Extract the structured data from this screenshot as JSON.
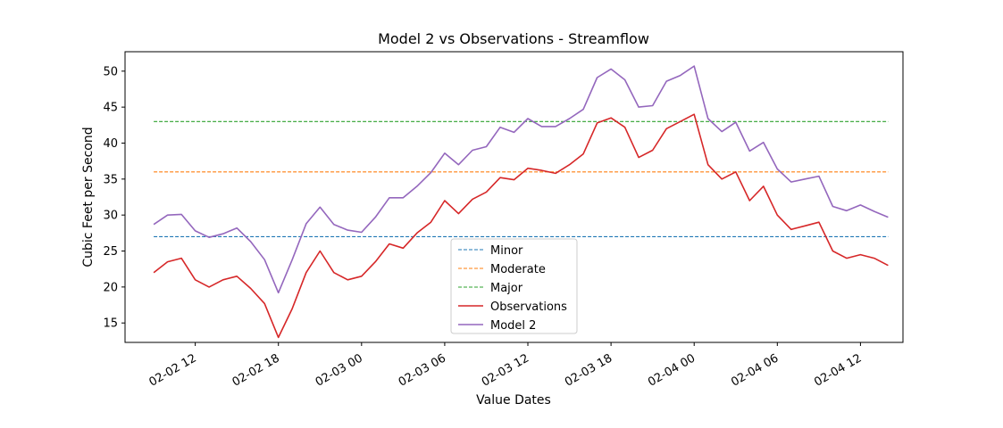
{
  "chart_data": {
    "type": "line",
    "title": "Model 2 vs Observations - Streamflow",
    "xlabel": "Value Dates",
    "ylabel": "Cubic Feet per Second",
    "x_tick_labels": [
      "02-02 12",
      "02-02 18",
      "02-03 00",
      "02-03 06",
      "02-03 12",
      "02-03 18",
      "02-04 00",
      "02-04 06",
      "02-04 12"
    ],
    "x_tick_times": [
      "2024-02-02T12:00",
      "2024-02-02T18:00",
      "2024-02-03T00:00",
      "2024-02-03T06:00",
      "2024-02-03T12:00",
      "2024-02-03T18:00",
      "2024-02-04T00:00",
      "2024-02-04T06:00",
      "2024-02-04T12:00"
    ],
    "xlim": [
      "2024-02-02T06:56",
      "2024-02-04T15:04"
    ],
    "ylim": [
      12.3,
      52.7
    ],
    "y_ticks": [
      15,
      20,
      25,
      30,
      35,
      40,
      45,
      50
    ],
    "grid": false,
    "legend_position": "lower-center",
    "x": [
      "2024-02-02T09:00",
      "2024-02-02T10:00",
      "2024-02-02T11:00",
      "2024-02-02T12:00",
      "2024-02-02T13:00",
      "2024-02-02T14:00",
      "2024-02-02T15:00",
      "2024-02-02T16:00",
      "2024-02-02T17:00",
      "2024-02-02T18:00",
      "2024-02-02T19:00",
      "2024-02-02T20:00",
      "2024-02-02T21:00",
      "2024-02-02T22:00",
      "2024-02-02T23:00",
      "2024-02-03T00:00",
      "2024-02-03T01:00",
      "2024-02-03T02:00",
      "2024-02-03T03:00",
      "2024-02-03T04:00",
      "2024-02-03T05:00",
      "2024-02-03T06:00",
      "2024-02-03T07:00",
      "2024-02-03T08:00",
      "2024-02-03T09:00",
      "2024-02-03T10:00",
      "2024-02-03T11:00",
      "2024-02-03T12:00",
      "2024-02-03T13:00",
      "2024-02-03T14:00",
      "2024-02-03T15:00",
      "2024-02-03T16:00",
      "2024-02-03T17:00",
      "2024-02-03T18:00",
      "2024-02-03T19:00",
      "2024-02-03T20:00",
      "2024-02-03T21:00",
      "2024-02-03T22:00",
      "2024-02-03T23:00",
      "2024-02-04T00:00",
      "2024-02-04T01:00",
      "2024-02-04T02:00",
      "2024-02-04T03:00",
      "2024-02-04T04:00",
      "2024-02-04T05:00",
      "2024-02-04T06:00",
      "2024-02-04T07:00",
      "2024-02-04T08:00",
      "2024-02-04T09:00",
      "2024-02-04T10:00",
      "2024-02-04T11:00",
      "2024-02-04T12:00",
      "2024-02-04T13:00",
      "2024-02-04T14:00"
    ],
    "series": [
      {
        "name": "Minor",
        "style": "dashed",
        "color": "#1f77b4",
        "values": [
          27,
          27,
          27,
          27,
          27,
          27,
          27,
          27,
          27,
          27,
          27,
          27,
          27,
          27,
          27,
          27,
          27,
          27,
          27,
          27,
          27,
          27,
          27,
          27,
          27,
          27,
          27,
          27,
          27,
          27,
          27,
          27,
          27,
          27,
          27,
          27,
          27,
          27,
          27,
          27,
          27,
          27,
          27,
          27,
          27,
          27,
          27,
          27,
          27,
          27,
          27,
          27,
          27,
          27
        ]
      },
      {
        "name": "Moderate",
        "style": "dashed",
        "color": "#ff7f0e",
        "values": [
          36,
          36,
          36,
          36,
          36,
          36,
          36,
          36,
          36,
          36,
          36,
          36,
          36,
          36,
          36,
          36,
          36,
          36,
          36,
          36,
          36,
          36,
          36,
          36,
          36,
          36,
          36,
          36,
          36,
          36,
          36,
          36,
          36,
          36,
          36,
          36,
          36,
          36,
          36,
          36,
          36,
          36,
          36,
          36,
          36,
          36,
          36,
          36,
          36,
          36,
          36,
          36,
          36,
          36
        ]
      },
      {
        "name": "Major",
        "style": "dashed",
        "color": "#2ca02c",
        "values": [
          43,
          43,
          43,
          43,
          43,
          43,
          43,
          43,
          43,
          43,
          43,
          43,
          43,
          43,
          43,
          43,
          43,
          43,
          43,
          43,
          43,
          43,
          43,
          43,
          43,
          43,
          43,
          43,
          43,
          43,
          43,
          43,
          43,
          43,
          43,
          43,
          43,
          43,
          43,
          43,
          43,
          43,
          43,
          43,
          43,
          43,
          43,
          43,
          43,
          43,
          43,
          43,
          43,
          43
        ]
      },
      {
        "name": "Observations",
        "style": "solid",
        "color": "#d62728",
        "values": [
          22.0,
          23.5,
          24.0,
          21.0,
          20.0,
          21.0,
          21.5,
          19.8,
          17.7,
          13.0,
          17.0,
          22.0,
          25.0,
          22.0,
          21.0,
          21.5,
          23.5,
          26.0,
          25.4,
          27.5,
          29.0,
          32.0,
          30.2,
          32.2,
          33.2,
          35.2,
          34.9,
          36.5,
          36.2,
          35.8,
          37.0,
          38.5,
          42.8,
          43.5,
          42.2,
          38.0,
          39.0,
          42.0,
          43.0,
          44.0,
          37.0,
          35.0,
          36.0,
          32.0,
          34.0,
          30.0,
          28.0,
          28.5,
          29.0,
          25.0,
          24.0,
          24.5,
          24.0,
          23.0
        ]
      },
      {
        "name": "Model 2",
        "style": "solid",
        "color": "#9467bd",
        "values": [
          28.7,
          30.0,
          30.1,
          27.8,
          26.9,
          27.4,
          28.2,
          26.3,
          23.8,
          19.2,
          23.8,
          28.8,
          31.1,
          28.7,
          27.9,
          27.6,
          29.7,
          32.4,
          32.4,
          34.0,
          35.9,
          38.6,
          37.0,
          39.0,
          39.5,
          42.2,
          41.5,
          43.4,
          42.3,
          42.3,
          43.4,
          44.7,
          49.1,
          50.3,
          48.8,
          45.0,
          45.2,
          48.6,
          49.4,
          50.7,
          43.4,
          41.6,
          42.9,
          38.9,
          40.1,
          36.4,
          34.6,
          35.0,
          35.4,
          31.2,
          30.6,
          31.4,
          30.5,
          29.7
        ]
      }
    ]
  }
}
